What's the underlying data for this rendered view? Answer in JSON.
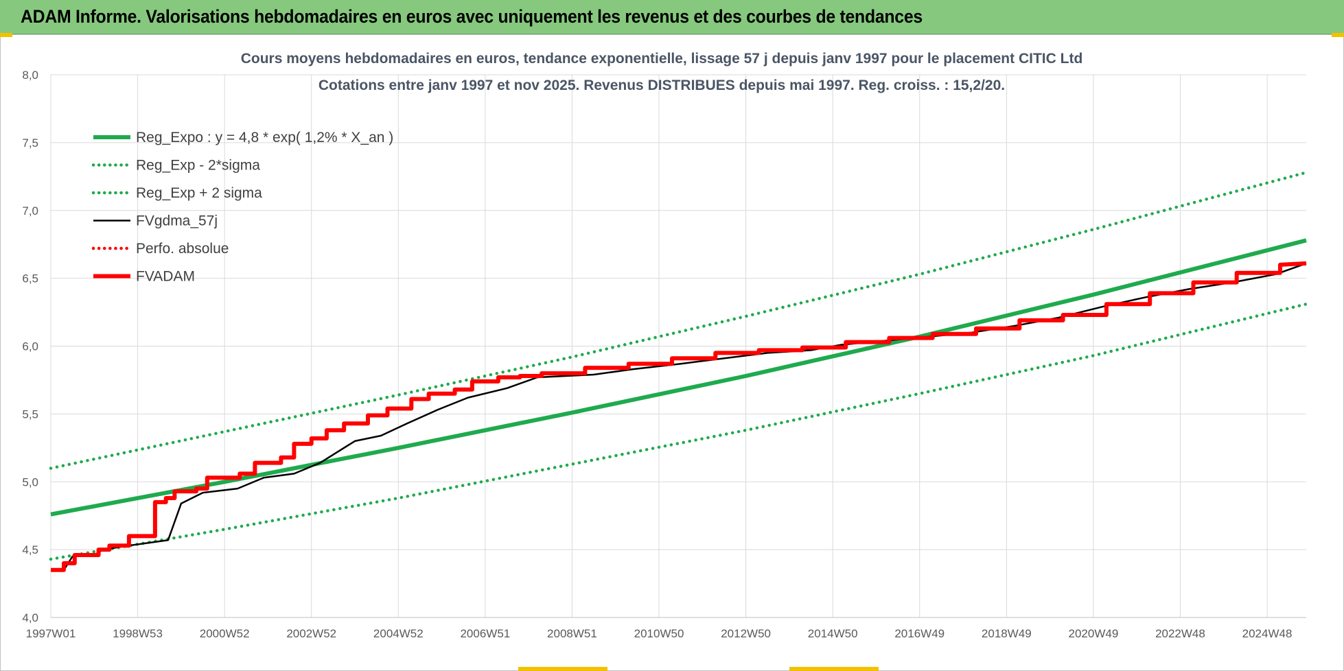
{
  "banner": {
    "title": "ADAM Informe. Valorisations hebdomadaires en euros avec uniquement les revenus et des courbes de tendances"
  },
  "colors": {
    "banner_bg": "#86c97e",
    "green": "#1faa4e",
    "red": "#ff0000",
    "black": "#000000",
    "grid": "#d9d9d9"
  },
  "chart_data": {
    "type": "line",
    "title": "Cours moyens hebdomadaires en euros, tendance exponentielle, lissage 57 j depuis janv 1997 pour le placement CITIC Ltd",
    "subtitle": "Cotations entre janv 1997 et nov 2025. Revenus DISTRIBUES depuis mai 1997. Reg. croiss. : 15,2/20.",
    "xlabel": "",
    "ylabel": "",
    "ylim": [
      4.0,
      8.0
    ],
    "xlim": [
      1997.0,
      2025.9
    ],
    "y_ticks": [
      "4,0",
      "4,5",
      "5,0",
      "5,5",
      "6,0",
      "6,5",
      "7,0",
      "7,5",
      "8,0"
    ],
    "x_tick_labels": [
      "1997W01",
      "1998W53",
      "2000W52",
      "2002W52",
      "2004W52",
      "2006W51",
      "2008W51",
      "2010W50",
      "2012W50",
      "2014W50",
      "2016W49",
      "2018W49",
      "2020W49",
      "2022W48",
      "2024W48"
    ],
    "x_tick_positions": [
      1997.0,
      1999.0,
      2001.0,
      2003.0,
      2005.0,
      2007.0,
      2009.0,
      2011.0,
      2013.0,
      2015.0,
      2017.0,
      2019.0,
      2021.0,
      2023.0,
      2025.0
    ],
    "grid": true,
    "legend_position": "top-left",
    "series": [
      {
        "name": "Reg_Expo : y = 4,8 * exp( 1,2% *  X_an )",
        "style": "solid-thick",
        "color": "#1faa4e",
        "x": [
          1997.0,
          2001.0,
          2005.0,
          2009.0,
          2013.0,
          2017.0,
          2021.0,
          2025.9
        ],
        "y": [
          4.76,
          5.0,
          5.25,
          5.51,
          5.78,
          6.07,
          6.38,
          6.78
        ]
      },
      {
        "name": "Reg_Exp - 2*sigma",
        "style": "dotted",
        "color": "#1faa4e",
        "x": [
          1997.0,
          2001.0,
          2005.0,
          2009.0,
          2013.0,
          2017.0,
          2021.0,
          2025.9
        ],
        "y": [
          4.43,
          4.65,
          4.88,
          5.13,
          5.38,
          5.65,
          5.93,
          6.31
        ]
      },
      {
        "name": "Reg_Exp + 2 sigma",
        "style": "dotted",
        "color": "#1faa4e",
        "x": [
          1997.0,
          2001.0,
          2005.0,
          2009.0,
          2013.0,
          2017.0,
          2021.0,
          2025.9
        ],
        "y": [
          5.1,
          5.37,
          5.64,
          5.92,
          6.22,
          6.53,
          6.86,
          7.28
        ]
      },
      {
        "name": "FVgdma_57j",
        "style": "solid-thin",
        "color": "#000000",
        "x": [
          1997.0,
          1997.3,
          1997.5,
          1998.0,
          1998.2,
          1998.8,
          1999.7,
          2000.0,
          2000.5,
          2001.3,
          2001.9,
          2002.6,
          2003.2,
          2004.0,
          2004.6,
          2005.2,
          2005.9,
          2006.6,
          2007.5,
          2008.2,
          2009.5,
          2010.4,
          2011.5,
          2012.5,
          2013.5,
          2014.5,
          2015.2,
          2016.2,
          2017.2,
          2018.2,
          2019.2,
          2020.2,
          2021.2,
          2022.2,
          2023.2,
          2024.2,
          2025.2,
          2025.9
        ],
        "y": [
          4.35,
          4.35,
          4.45,
          4.46,
          4.5,
          4.53,
          4.57,
          4.84,
          4.92,
          4.95,
          5.03,
          5.06,
          5.14,
          5.3,
          5.34,
          5.43,
          5.53,
          5.62,
          5.69,
          5.77,
          5.79,
          5.83,
          5.87,
          5.91,
          5.95,
          5.97,
          6.01,
          6.04,
          6.07,
          6.1,
          6.15,
          6.21,
          6.29,
          6.36,
          6.42,
          6.47,
          6.53,
          6.61
        ]
      },
      {
        "name": "Perfo. absolue",
        "style": "dotted",
        "color": "#ff0000",
        "x": [
          1997.0,
          2025.9
        ],
        "y": [
          4.35,
          6.61
        ]
      },
      {
        "name": "FVADAM",
        "style": "solid-thick",
        "color": "#ff0000",
        "x": [
          1997.0,
          1997.3,
          1997.3,
          1997.55,
          1997.55,
          1998.1,
          1998.1,
          1998.35,
          1998.35,
          1998.8,
          1998.8,
          1999.4,
          1999.4,
          1999.65,
          1999.65,
          1999.85,
          1999.85,
          2000.35,
          2000.35,
          2000.6,
          2000.6,
          2001.35,
          2001.35,
          2001.7,
          2001.7,
          2002.3,
          2002.3,
          2002.6,
          2002.6,
          2003.0,
          2003.0,
          2003.35,
          2003.35,
          2003.75,
          2003.75,
          2004.3,
          2004.3,
          2004.75,
          2004.75,
          2005.3,
          2005.3,
          2005.7,
          2005.7,
          2006.3,
          2006.3,
          2006.7,
          2006.7,
          2007.3,
          2007.3,
          2007.8,
          2007.8,
          2008.3,
          2008.3,
          2009.3,
          2009.3,
          2010.3,
          2010.3,
          2011.3,
          2011.3,
          2012.3,
          2012.3,
          2013.3,
          2013.3,
          2014.3,
          2014.3,
          2015.3,
          2015.3,
          2016.3,
          2016.3,
          2017.3,
          2017.3,
          2018.3,
          2018.3,
          2019.3,
          2019.3,
          2020.3,
          2020.3,
          2021.3,
          2021.3,
          2022.3,
          2022.3,
          2023.3,
          2023.3,
          2024.3,
          2024.3,
          2025.3,
          2025.3,
          2025.9
        ],
        "y": [
          4.35,
          4.35,
          4.4,
          4.4,
          4.46,
          4.46,
          4.5,
          4.5,
          4.53,
          4.53,
          4.6,
          4.6,
          4.85,
          4.85,
          4.88,
          4.88,
          4.93,
          4.93,
          4.95,
          4.95,
          5.03,
          5.03,
          5.06,
          5.06,
          5.14,
          5.14,
          5.18,
          5.18,
          5.28,
          5.28,
          5.32,
          5.32,
          5.38,
          5.38,
          5.43,
          5.43,
          5.49,
          5.49,
          5.54,
          5.54,
          5.61,
          5.61,
          5.65,
          5.65,
          5.68,
          5.68,
          5.74,
          5.74,
          5.77,
          5.77,
          5.78,
          5.78,
          5.8,
          5.8,
          5.84,
          5.84,
          5.87,
          5.87,
          5.91,
          5.91,
          5.95,
          5.95,
          5.97,
          5.97,
          5.99,
          5.99,
          6.03,
          6.03,
          6.06,
          6.06,
          6.09,
          6.09,
          6.13,
          6.13,
          6.19,
          6.19,
          6.23,
          6.23,
          6.31,
          6.31,
          6.39,
          6.39,
          6.47,
          6.47,
          6.54,
          6.54,
          6.6,
          6.61
        ]
      }
    ]
  }
}
